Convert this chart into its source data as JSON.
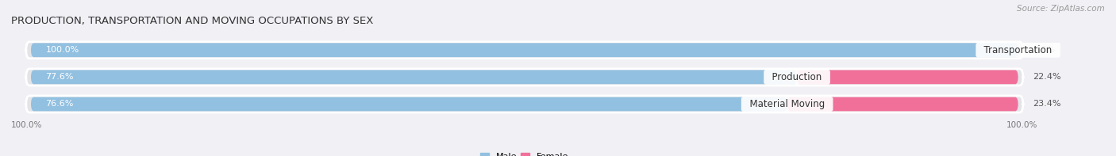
{
  "title": "PRODUCTION, TRANSPORTATION AND MOVING OCCUPATIONS BY SEX",
  "source": "Source: ZipAtlas.com",
  "categories": [
    "Transportation",
    "Production",
    "Material Moving"
  ],
  "male_values": [
    100.0,
    77.6,
    76.6
  ],
  "female_values": [
    0.0,
    22.4,
    23.4
  ],
  "male_color": "#92c0e0",
  "female_color": "#f0709a",
  "bar_bg_color": "#e4e4e8",
  "title_fontsize": 9.5,
  "source_fontsize": 7.5,
  "value_fontsize": 8,
  "cat_fontsize": 8.5,
  "bar_height": 0.62,
  "figsize": [
    14.06,
    1.97
  ],
  "dpi": 100,
  "x_left_label": "100.0%",
  "x_right_label": "100.0%",
  "bg_color": "#f0f0f5"
}
